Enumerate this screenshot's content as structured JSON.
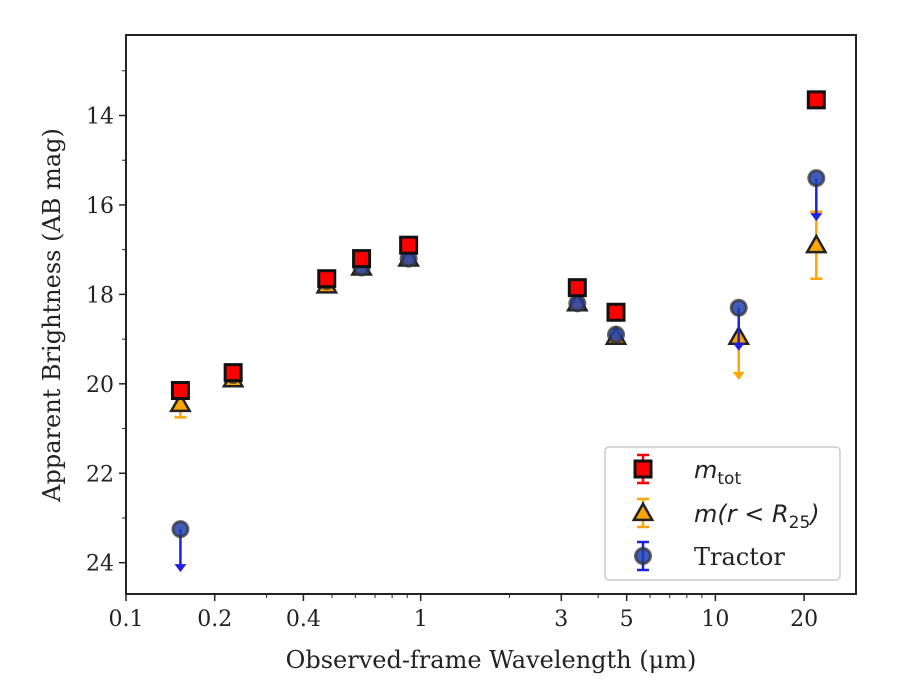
{
  "chart_data": {
    "type": "scatter",
    "xlabel": "Observed-frame Wavelength (μm)",
    "ylabel": "Apparent Brightness (AB mag)",
    "xscale": "log",
    "xlim": [
      0.1,
      30
    ],
    "ylim": [
      24.7,
      12.2
    ],
    "y_inverted": true,
    "grid": false,
    "legend_position": "bottom-right",
    "x_ticks": [
      0.1,
      0.2,
      0.4,
      1,
      3,
      5,
      10,
      20
    ],
    "x_tick_labels": [
      "0.1",
      "0.2",
      "0.4",
      "1",
      "3",
      "5",
      "10",
      "20"
    ],
    "y_ticks": [
      14,
      16,
      18,
      20,
      22,
      24
    ],
    "y_tick_labels": [
      "14",
      "16",
      "18",
      "20",
      "22",
      "24"
    ],
    "series": [
      {
        "name_parts": [
          "m",
          "tot"
        ],
        "marker": "square",
        "color": "#ff0000",
        "err_color": "#ff0000",
        "points": [
          {
            "x": 0.153,
            "y": 20.15
          },
          {
            "x": 0.231,
            "y": 19.75
          },
          {
            "x": 0.48,
            "y": 17.65
          },
          {
            "x": 0.63,
            "y": 17.2
          },
          {
            "x": 0.91,
            "y": 16.9
          },
          {
            "x": 3.4,
            "y": 17.85
          },
          {
            "x": 4.6,
            "y": 18.4
          },
          {
            "x": 22.0,
            "y": 13.65
          }
        ]
      },
      {
        "name_parts": [
          "m(r < R",
          "25",
          ")"
        ],
        "marker": "triangle",
        "color": "#ffa500",
        "err_color": "#ffa500",
        "points": [
          {
            "x": 0.153,
            "y": 20.45,
            "err": 0.3
          },
          {
            "x": 0.231,
            "y": 19.9
          },
          {
            "x": 0.48,
            "y": 17.8
          },
          {
            "x": 0.63,
            "y": 17.4
          },
          {
            "x": 0.91,
            "y": 17.2
          },
          {
            "x": 3.4,
            "y": 18.2
          },
          {
            "x": 4.6,
            "y": 18.95
          },
          {
            "x": 12.0,
            "y": 18.95,
            "upper_limit": true
          },
          {
            "x": 22.0,
            "y": 16.9,
            "err": 0.75
          }
        ]
      },
      {
        "name": "Tractor",
        "marker": "circle",
        "color": "#1e3fb0",
        "err_color": "#2020e0",
        "points": [
          {
            "x": 0.153,
            "y": 23.25,
            "upper_limit": true
          },
          {
            "x": 0.231,
            "y": 19.8
          },
          {
            "x": 0.48,
            "y": 17.7
          },
          {
            "x": 0.63,
            "y": 17.4
          },
          {
            "x": 0.91,
            "y": 17.2
          },
          {
            "x": 3.4,
            "y": 18.2
          },
          {
            "x": 4.6,
            "y": 18.9
          },
          {
            "x": 12.0,
            "y": 18.3,
            "upper_limit": true
          },
          {
            "x": 22.0,
            "y": 15.4,
            "upper_limit": true
          }
        ]
      }
    ]
  }
}
